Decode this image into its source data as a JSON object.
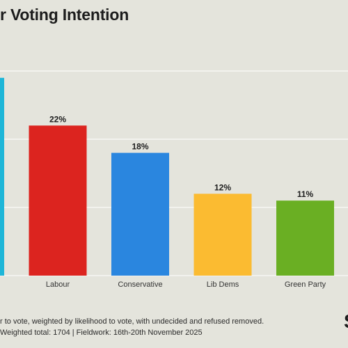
{
  "title": "r Voting Intention",
  "chart_data": {
    "type": "bar",
    "categories": [
      "",
      "Labour",
      "Conservative",
      "Lib Dems",
      "Green Party"
    ],
    "values": [
      29,
      22,
      18,
      12,
      11
    ],
    "value_labels": [
      "",
      "22%",
      "18%",
      "12%",
      "11%"
    ],
    "colors": [
      "#1eb6d8",
      "#dc241f",
      "#2a86df",
      "#fbbb31",
      "#6aaf23"
    ],
    "ylim": [
      0,
      30
    ],
    "grid": true
  },
  "footer": {
    "line1": "r to vote, weighted by likelihood to vote, with undecided and refused removed.",
    "line2": "Weighted total: 1704 | Fieldwork: 16th-20th November 2025"
  },
  "logo": "S"
}
